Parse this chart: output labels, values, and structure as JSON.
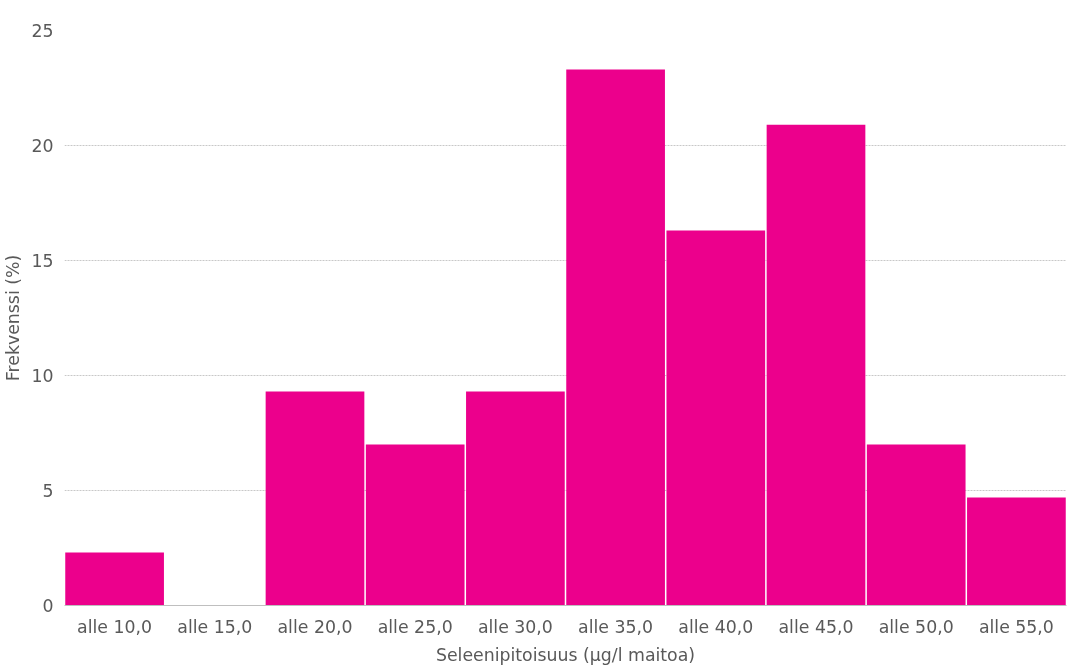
{
  "chart_data": {
    "type": "bar",
    "xlabel": "Seleenipitoisuus (µg/l maitoa)",
    "ylabel": "Frekvenssi (%)",
    "categories": [
      "alle 10,0",
      "alle 15,0",
      "alle 20,0",
      "alle 25,0",
      "alle 30,0",
      "alle 35,0",
      "alle 40,0",
      "alle 45,0",
      "alle 50,0",
      "alle 55,0"
    ],
    "values": [
      2.3,
      0,
      9.3,
      7.0,
      9.3,
      23.3,
      16.3,
      20.9,
      7.0,
      4.7
    ],
    "color": "#ec008c",
    "ylim": [
      0,
      25
    ],
    "yticks": [
      0,
      5,
      10,
      15,
      20,
      25
    ],
    "grid": "y"
  }
}
